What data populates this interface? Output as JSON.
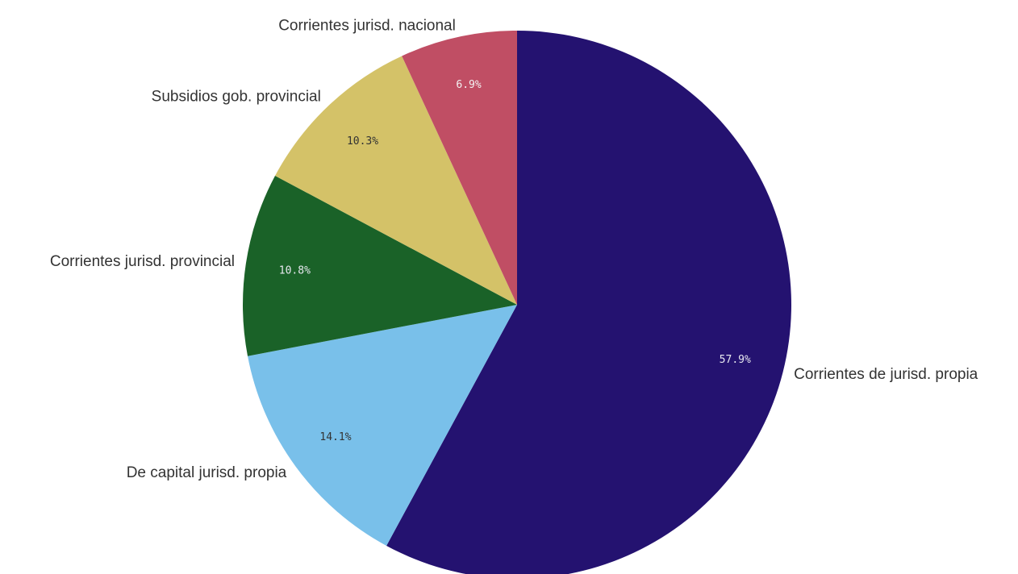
{
  "chart_data": {
    "type": "pie",
    "title": "",
    "slices": [
      {
        "name": "Corrientes de jurisd. propia",
        "value": 57.9,
        "label": "57.9%",
        "color": "#241270",
        "label_color": "#e8e8f0"
      },
      {
        "name": "De capital jurisd. propia",
        "value": 14.1,
        "label": "14.1%",
        "color": "#79c0ea",
        "label_color": "#333333"
      },
      {
        "name": "Corrientes jurisd. provincial",
        "value": 10.8,
        "label": "10.8%",
        "color": "#1a6228",
        "label_color": "#e8e8f0"
      },
      {
        "name": "Subsidios gob. provincial",
        "value": 10.3,
        "label": "10.3%",
        "color": "#d4c268",
        "label_color": "#333333"
      },
      {
        "name": "Corrientes jurisd. nacional",
        "value": 6.9,
        "label": "6.9%",
        "color": "#c04e64",
        "label_color": "#f3f3f3"
      }
    ],
    "start_angle": "12 o'clock",
    "direction": "clockwise",
    "legend": "none (labels placed next to slices)"
  }
}
